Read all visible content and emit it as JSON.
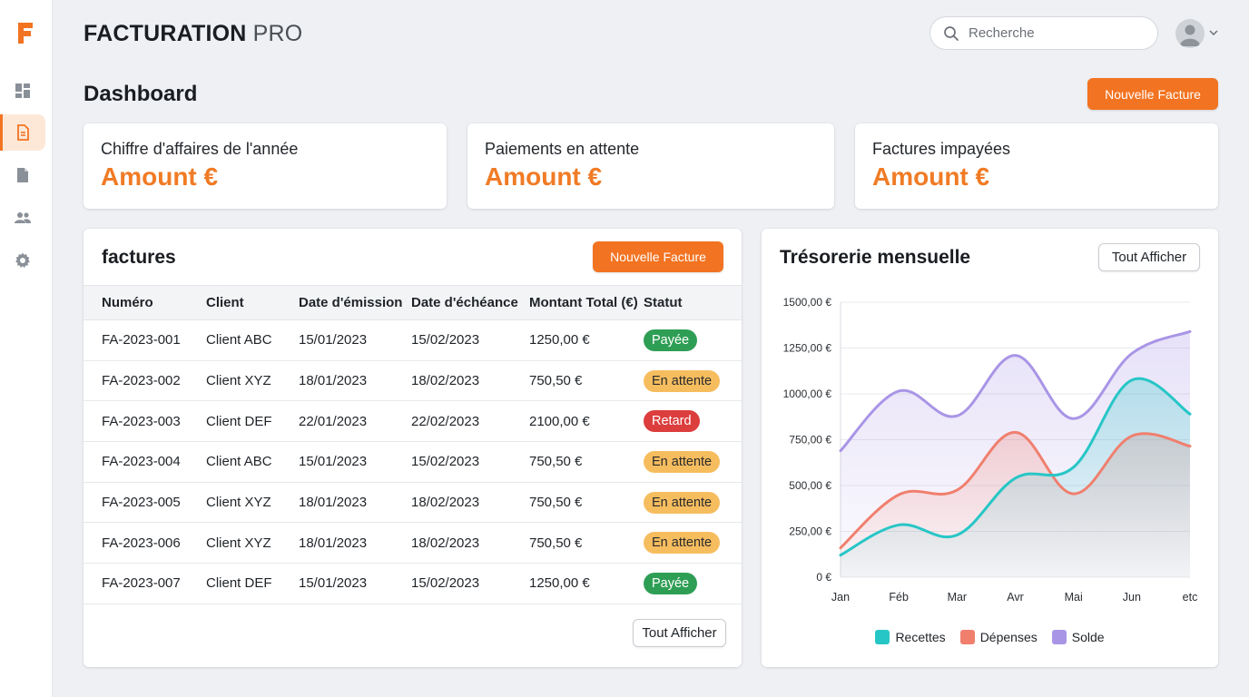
{
  "app": {
    "title_main": "FACTURATION",
    "title_suffix": "PRO"
  },
  "sidebar": {
    "items": [
      {
        "name": "dashboard",
        "icon": "dashboard-icon",
        "active": false
      },
      {
        "name": "invoices",
        "icon": "invoice-icon",
        "active": true
      },
      {
        "name": "documents",
        "icon": "document-icon",
        "active": false
      },
      {
        "name": "clients",
        "icon": "users-icon",
        "active": false
      },
      {
        "name": "settings",
        "icon": "gear-icon",
        "active": false
      }
    ]
  },
  "search": {
    "placeholder": "Recherche"
  },
  "page": {
    "title": "Dashboard",
    "new_invoice_label": "Nouvelle Facture"
  },
  "kpis": [
    {
      "label": "Chiffre d'affaires de l'année",
      "value": "Amount €"
    },
    {
      "label": "Paiements en attente",
      "value": "Amount €"
    },
    {
      "label": "Factures impayées",
      "value": "Amount €"
    }
  ],
  "invoices": {
    "title": "factures",
    "new_label": "Nouvelle Facture",
    "view_all_label": "Tout Afficher",
    "columns": [
      "Numéro",
      "Client",
      "Date d'émission",
      "Date d'échéance",
      "Montant Total (€)",
      "Statut"
    ],
    "rows": [
      {
        "number": "FA-2023-001",
        "client": "Client ABC",
        "issued": "15/01/2023",
        "due": "15/02/2023",
        "total": "1250,00 €",
        "status": "Payée",
        "status_kind": "paid"
      },
      {
        "number": "FA-2023-002",
        "client": "Client XYZ",
        "issued": "18/01/2023",
        "due": "18/02/2023",
        "total": "750,50 €",
        "status": "En attente",
        "status_kind": "pending"
      },
      {
        "number": "FA-2023-003",
        "client": "Client DEF",
        "issued": "22/01/2023",
        "due": "22/02/2023",
        "total": "2100,00 €",
        "status": "Retard",
        "status_kind": "late"
      },
      {
        "number": "FA-2023-004",
        "client": "Client ABC",
        "issued": "15/01/2023",
        "due": "15/02/2023",
        "total": "750,50 €",
        "status": "En attente",
        "status_kind": "pending"
      },
      {
        "number": "FA-2023-005",
        "client": "Client XYZ",
        "issued": "18/01/2023",
        "due": "18/02/2023",
        "total": "750,50 €",
        "status": "En attente",
        "status_kind": "pending"
      },
      {
        "number": "FA-2023-006",
        "client": "Client XYZ",
        "issued": "18/01/2023",
        "due": "18/02/2023",
        "total": "750,50 €",
        "status": "En attente",
        "status_kind": "pending"
      },
      {
        "number": "FA-2023-007",
        "client": "Client DEF",
        "issued": "15/01/2023",
        "due": "15/02/2023",
        "total": "1250,00 €",
        "status": "Payée",
        "status_kind": "paid"
      }
    ]
  },
  "treasury": {
    "title": "Trésorerie mensuelle",
    "view_all_label": "Tout Afficher"
  },
  "colors": {
    "accent": "#f27321",
    "recettes": "#27c6c6",
    "depenses": "#f07f6e",
    "solde": "#a995e6",
    "paid": "#2f9e55",
    "pending": "#f6bd5f",
    "late": "#dc3d3d"
  },
  "chart_data": {
    "type": "line",
    "title": "Trésorerie mensuelle",
    "categories": [
      "Jan",
      "Féb",
      "Mar",
      "Avr",
      "Mai",
      "Jun",
      "etc"
    ],
    "y_tick_labels": [
      "0 €",
      "250,00 €",
      "500,00 €",
      "750,00 €",
      "1000,00 €",
      "1250,00 €",
      "1500,00 €"
    ],
    "ylim": [
      0,
      1500
    ],
    "grid": true,
    "area_fill": true,
    "legend_position": "bottom",
    "series": [
      {
        "name": "Recettes",
        "color": "#27c6c6",
        "values": [
          120,
          285,
          230,
          540,
          600,
          1075,
          890
        ]
      },
      {
        "name": "Dépenses",
        "color": "#f07f6e",
        "values": [
          160,
          450,
          475,
          790,
          455,
          770,
          715
        ]
      },
      {
        "name": "Solde",
        "color": "#a995e6",
        "values": [
          690,
          1015,
          880,
          1210,
          865,
          1220,
          1340
        ]
      }
    ]
  }
}
